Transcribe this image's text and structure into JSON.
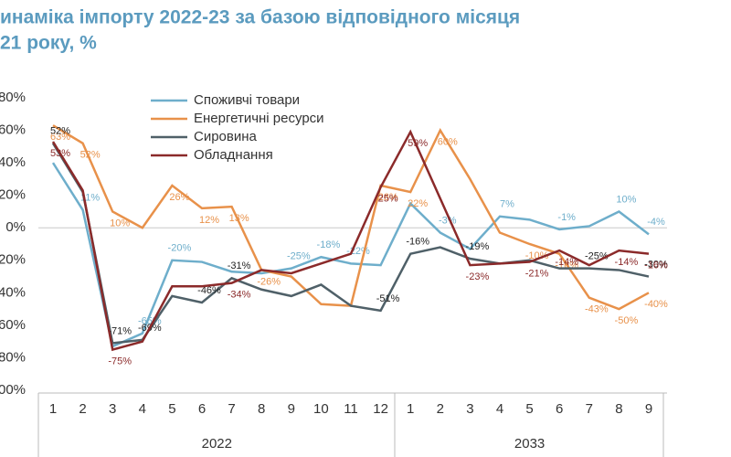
{
  "chart_data": {
    "type": "line",
    "title": [
      "инаміка імпорту 2022-23 за базою відповідного місяця",
      "21 року, %"
    ],
    "categories": [
      "1",
      "2",
      "3",
      "4",
      "5",
      "6",
      "7",
      "8",
      "9",
      "10",
      "11",
      "12",
      "1",
      "2",
      "3",
      "4",
      "5",
      "6",
      "7",
      "8",
      "9"
    ],
    "groups": [
      "2022",
      "2033"
    ],
    "ylim": [
      -100,
      80
    ],
    "yticks": [
      {
        "value": 80,
        "label": "80%"
      },
      {
        "value": 60,
        "label": "60%"
      },
      {
        "value": 40,
        "label": "40%"
      },
      {
        "value": 20,
        "label": "20%"
      },
      {
        "value": 0,
        "label": "0%"
      },
      {
        "value": -20,
        "label": "-20%"
      },
      {
        "value": -40,
        "label": "-40%"
      },
      {
        "value": -60,
        "label": "-60%"
      },
      {
        "value": -80,
        "label": "-80%"
      },
      {
        "value": -100,
        "label": "-100%"
      }
    ],
    "legend": "top-left",
    "series": [
      {
        "name": "Споживчі товари",
        "color": "#6eaecb",
        "values": [
          40,
          11,
          -73,
          -65,
          -20,
          -21,
          -27,
          -28,
          -25,
          -18,
          -22,
          -23,
          15,
          -3,
          -13,
          7,
          5,
          -1,
          1,
          10,
          -4
        ],
        "value_labels": [
          null,
          "11%",
          null,
          "-65%",
          "-20%",
          null,
          null,
          null,
          "-25%",
          "-18%",
          "-22%",
          null,
          null,
          "-3%",
          null,
          "7%",
          null,
          "-1%",
          null,
          "10%",
          "-4%"
        ]
      },
      {
        "name": "Енергетичні ресурси",
        "color": "#e8914a",
        "values": [
          63,
          52,
          10,
          0,
          26,
          12,
          13,
          -26,
          -30,
          -47,
          -48,
          26,
          22,
          60,
          30,
          -3,
          -10,
          -16,
          -43,
          -50,
          -40
        ],
        "value_labels": [
          "63%",
          "52%",
          "10%",
          null,
          "26%",
          "12%",
          "13%",
          "-26%",
          null,
          null,
          null,
          "26%",
          "22%",
          "60%",
          null,
          null,
          "-10%",
          "-16%",
          "-43%",
          "-50%",
          "-40%"
        ]
      },
      {
        "name": "Сировина",
        "color": "#4f6068",
        "values": [
          52,
          22,
          -71,
          -69,
          -42,
          -46,
          -31,
          -38,
          -42,
          -35,
          -48,
          -51,
          -16,
          -12,
          -19,
          -22,
          -20,
          -25,
          -25,
          -26,
          -30
        ],
        "value_labels": [
          "52%",
          null,
          "-71%",
          "-69%",
          null,
          "-46%",
          "-31%",
          null,
          null,
          null,
          null,
          "-51%",
          "-16%",
          null,
          "-19%",
          null,
          null,
          null,
          "-25%",
          null,
          "-30%"
        ]
      },
      {
        "name": "Обладнання",
        "color": "#8b2a2a",
        "values": [
          53,
          23,
          -75,
          -70,
          -36,
          -36,
          -34,
          -26,
          -28,
          -22,
          -16,
          25,
          59,
          18,
          -23,
          -22,
          -21,
          -14,
          -23,
          -14,
          -16
        ],
        "value_labels": [
          "53%",
          null,
          "-75%",
          null,
          null,
          null,
          "-34%",
          null,
          null,
          null,
          null,
          "25%",
          "59%",
          null,
          "-23%",
          null,
          "-21%",
          "-14%",
          null,
          "-14%",
          "-16%"
        ]
      }
    ]
  }
}
